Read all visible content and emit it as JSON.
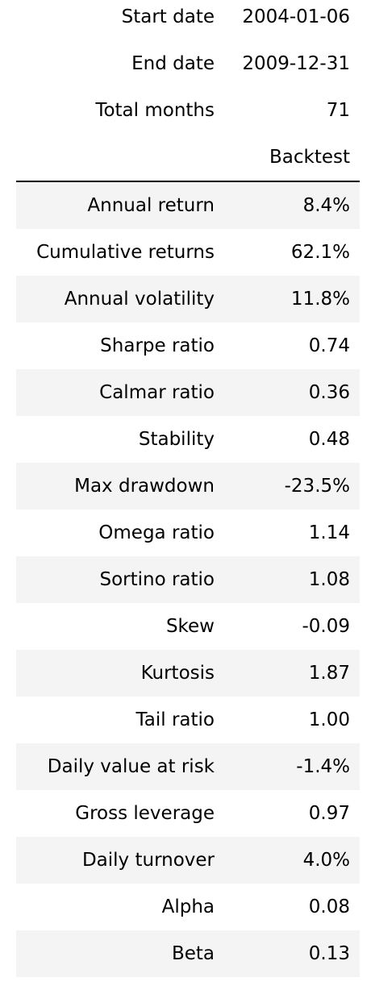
{
  "summary": [
    {
      "label": "Start date",
      "value": "2004-01-06"
    },
    {
      "label": "End date",
      "value": "2009-12-31"
    },
    {
      "label": "Total months",
      "value": "71"
    }
  ],
  "column_header": "Backtest",
  "metrics": [
    {
      "label": "Annual return",
      "value": "8.4%"
    },
    {
      "label": "Cumulative returns",
      "value": "62.1%"
    },
    {
      "label": "Annual volatility",
      "value": "11.8%"
    },
    {
      "label": "Sharpe ratio",
      "value": "0.74"
    },
    {
      "label": "Calmar ratio",
      "value": "0.36"
    },
    {
      "label": "Stability",
      "value": "0.48"
    },
    {
      "label": "Max drawdown",
      "value": "-23.5%"
    },
    {
      "label": "Omega ratio",
      "value": "1.14"
    },
    {
      "label": "Sortino ratio",
      "value": "1.08"
    },
    {
      "label": "Skew",
      "value": "-0.09"
    },
    {
      "label": "Kurtosis",
      "value": "1.87"
    },
    {
      "label": "Tail ratio",
      "value": "1.00"
    },
    {
      "label": "Daily value at risk",
      "value": "-1.4%"
    },
    {
      "label": "Gross leverage",
      "value": "0.97"
    },
    {
      "label": "Daily turnover",
      "value": "4.0%"
    },
    {
      "label": "Alpha",
      "value": "0.08"
    },
    {
      "label": "Beta",
      "value": "0.13"
    }
  ],
  "colors": {
    "stripe": "#f4f4f4",
    "text": "#000000",
    "rule": "#000000"
  }
}
